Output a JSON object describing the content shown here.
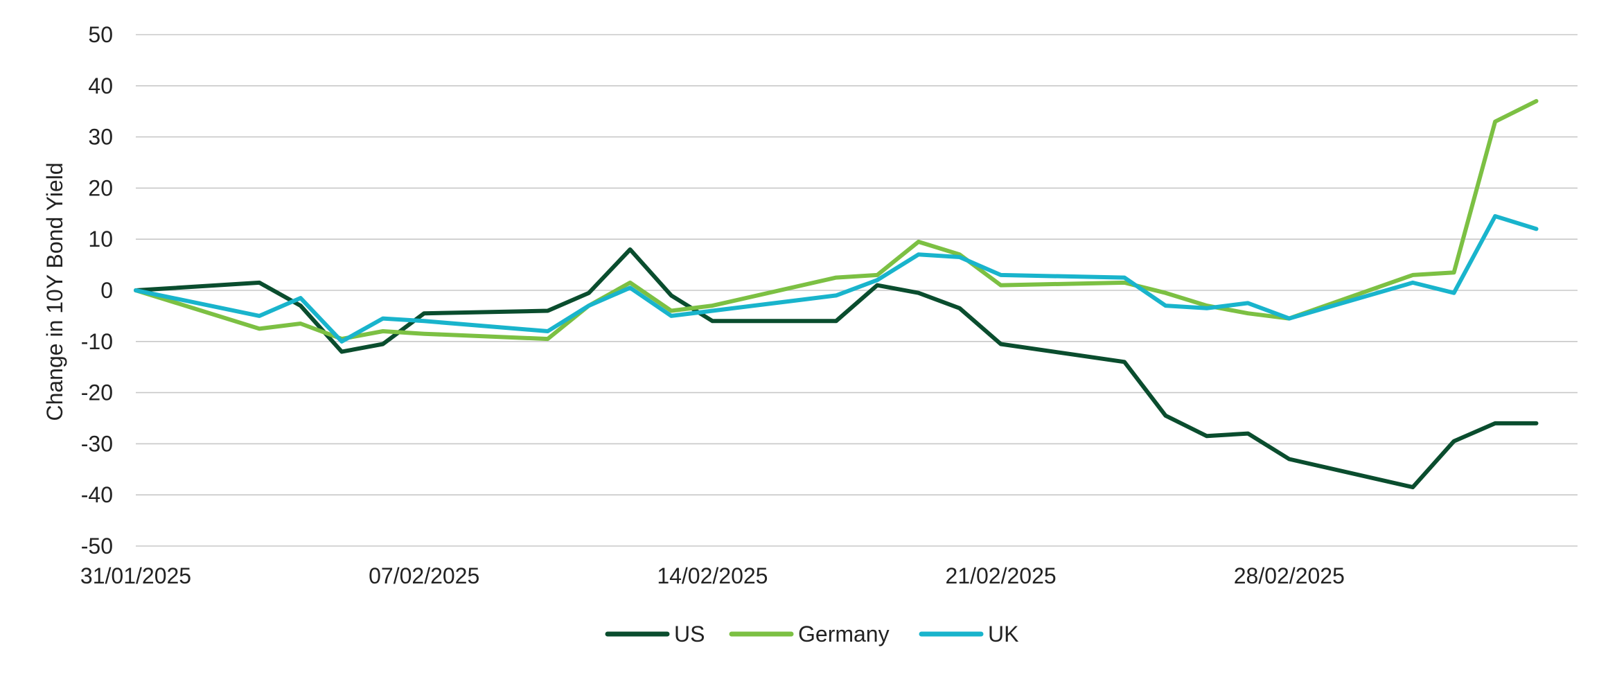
{
  "chart_data": {
    "type": "line",
    "title": "",
    "xlabel": "",
    "ylabel": "Change in 10Y Bond Yield",
    "ylim": [
      -50,
      50
    ],
    "yticks": [
      50,
      40,
      30,
      20,
      10,
      0,
      -10,
      -20,
      -30,
      -40,
      -50
    ],
    "xlim": [
      "31/01/2025",
      "07/03/2025"
    ],
    "xtick_labels": [
      "31/01/2025",
      "07/02/2025",
      "14/02/2025",
      "21/02/2025",
      "28/02/2025"
    ],
    "grid": true,
    "legend_position": "bottom",
    "x": [
      "31/01/2025",
      "03/02/2025",
      "04/02/2025",
      "05/02/2025",
      "06/02/2025",
      "07/02/2025",
      "10/02/2025",
      "11/02/2025",
      "12/02/2025",
      "13/02/2025",
      "14/02/2025",
      "17/02/2025",
      "18/02/2025",
      "19/02/2025",
      "20/02/2025",
      "21/02/2025",
      "24/02/2025",
      "25/02/2025",
      "26/02/2025",
      "27/02/2025",
      "28/02/2025",
      "03/03/2025",
      "04/03/2025",
      "05/03/2025",
      "06/03/2025"
    ],
    "series": [
      {
        "name": "US",
        "color": "#0a4d2e",
        "values": [
          0,
          1.5,
          -3,
          -12,
          -10.5,
          -4.5,
          -4,
          -0.5,
          8,
          -1,
          -6,
          -6,
          1,
          -0.5,
          -3.5,
          -10.5,
          -14,
          -24.5,
          -28.5,
          -28,
          -33,
          -38.5,
          -29.5,
          -26,
          -26
        ]
      },
      {
        "name": "Germany",
        "color": "#7cc043",
        "values": [
          0,
          -7.5,
          -6.5,
          -9.5,
          -8,
          -8.5,
          -9.5,
          -3,
          1.5,
          -4,
          -3,
          2.5,
          3,
          9.5,
          7,
          1,
          1.5,
          -0.5,
          -3,
          -4.5,
          -5.5,
          3,
          3.5,
          33,
          37
        ]
      },
      {
        "name": "UK",
        "color": "#19b4cc",
        "values": [
          0,
          -5,
          -1.5,
          -10,
          -5.5,
          -6,
          -8,
          -3,
          0.5,
          -5,
          -4,
          -1,
          2,
          7,
          6.5,
          3,
          2.5,
          -3,
          -3.5,
          -2.5,
          -5.5,
          1.5,
          -0.5,
          14.5,
          12
        ]
      }
    ]
  }
}
